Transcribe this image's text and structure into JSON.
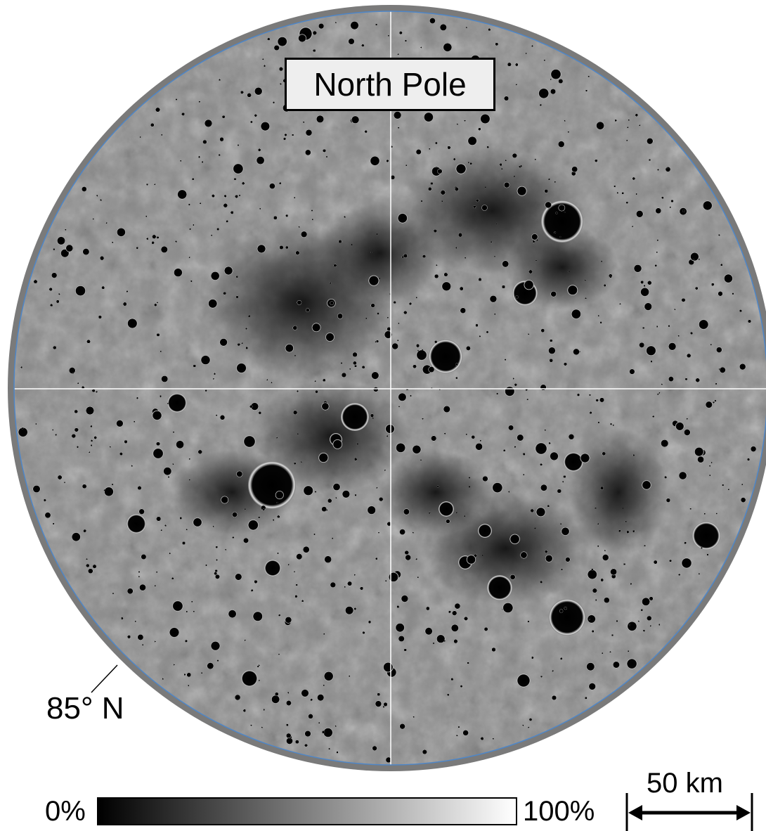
{
  "map": {
    "title": "North Pole",
    "latitude_label": "85° N",
    "colorbar": {
      "min_label": "0%",
      "max_label": "100%",
      "gradient_start": "#000000",
      "gradient_end": "#ffffff"
    },
    "scale_bar": {
      "label": "50 km"
    },
    "colors": {
      "frame_ring": "#7a7a7a",
      "ring_edge": "#4f86c6",
      "terrain_base": "#8a8a8a",
      "shadow": "#000000",
      "gridline": "#ffffff"
    }
  }
}
